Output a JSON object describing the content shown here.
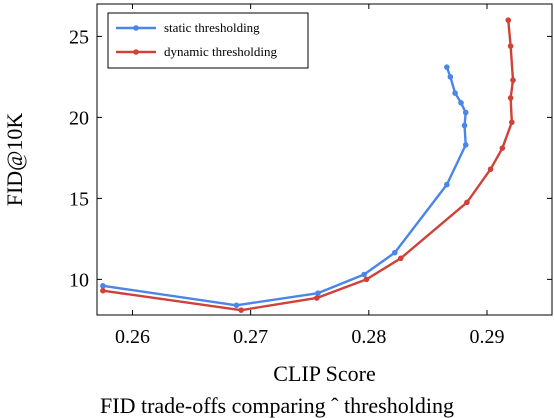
{
  "chart_data": {
    "type": "line",
    "xlabel": "CLIP Score",
    "ylabel": "FID@10K",
    "xlim": [
      0.257,
      0.2955
    ],
    "ylim": [
      7.8,
      27
    ],
    "xticks": [
      0.26,
      0.27,
      0.28,
      0.29
    ],
    "xtick_labels": [
      "0.26",
      "0.27",
      "0.28",
      "0.29"
    ],
    "yticks": [
      10,
      15,
      20,
      25
    ],
    "ytick_labels": [
      "10",
      "15",
      "20",
      "25"
    ],
    "legend_position": "top-left",
    "series": [
      {
        "name": "static thresholding",
        "color": "#4a86e8",
        "points": [
          [
            0.2575,
            9.6
          ],
          [
            0.2688,
            8.4
          ],
          [
            0.2757,
            9.15
          ],
          [
            0.2796,
            10.3
          ],
          [
            0.2822,
            11.65
          ],
          [
            0.2866,
            15.85
          ],
          [
            0.2882,
            18.3
          ],
          [
            0.2881,
            19.5
          ],
          [
            0.2882,
            20.3
          ],
          [
            0.2878,
            20.9
          ],
          [
            0.2873,
            21.5
          ],
          [
            0.2869,
            22.5
          ],
          [
            0.2866,
            23.1
          ]
        ]
      },
      {
        "name": "dynamic thresholding",
        "color": "#d0413a",
        "points": [
          [
            0.2575,
            9.3
          ],
          [
            0.2692,
            8.1
          ],
          [
            0.2756,
            8.85
          ],
          [
            0.2798,
            10.0
          ],
          [
            0.2827,
            11.3
          ],
          [
            0.2883,
            14.75
          ],
          [
            0.2903,
            16.8
          ],
          [
            0.2913,
            18.1
          ],
          [
            0.2921,
            19.7
          ],
          [
            0.292,
            21.2
          ],
          [
            0.2922,
            22.3
          ],
          [
            0.292,
            24.4
          ],
          [
            0.2918,
            26.0
          ]
        ]
      }
    ]
  },
  "caption": "FID trade-offs comparing ˆ thresholding"
}
